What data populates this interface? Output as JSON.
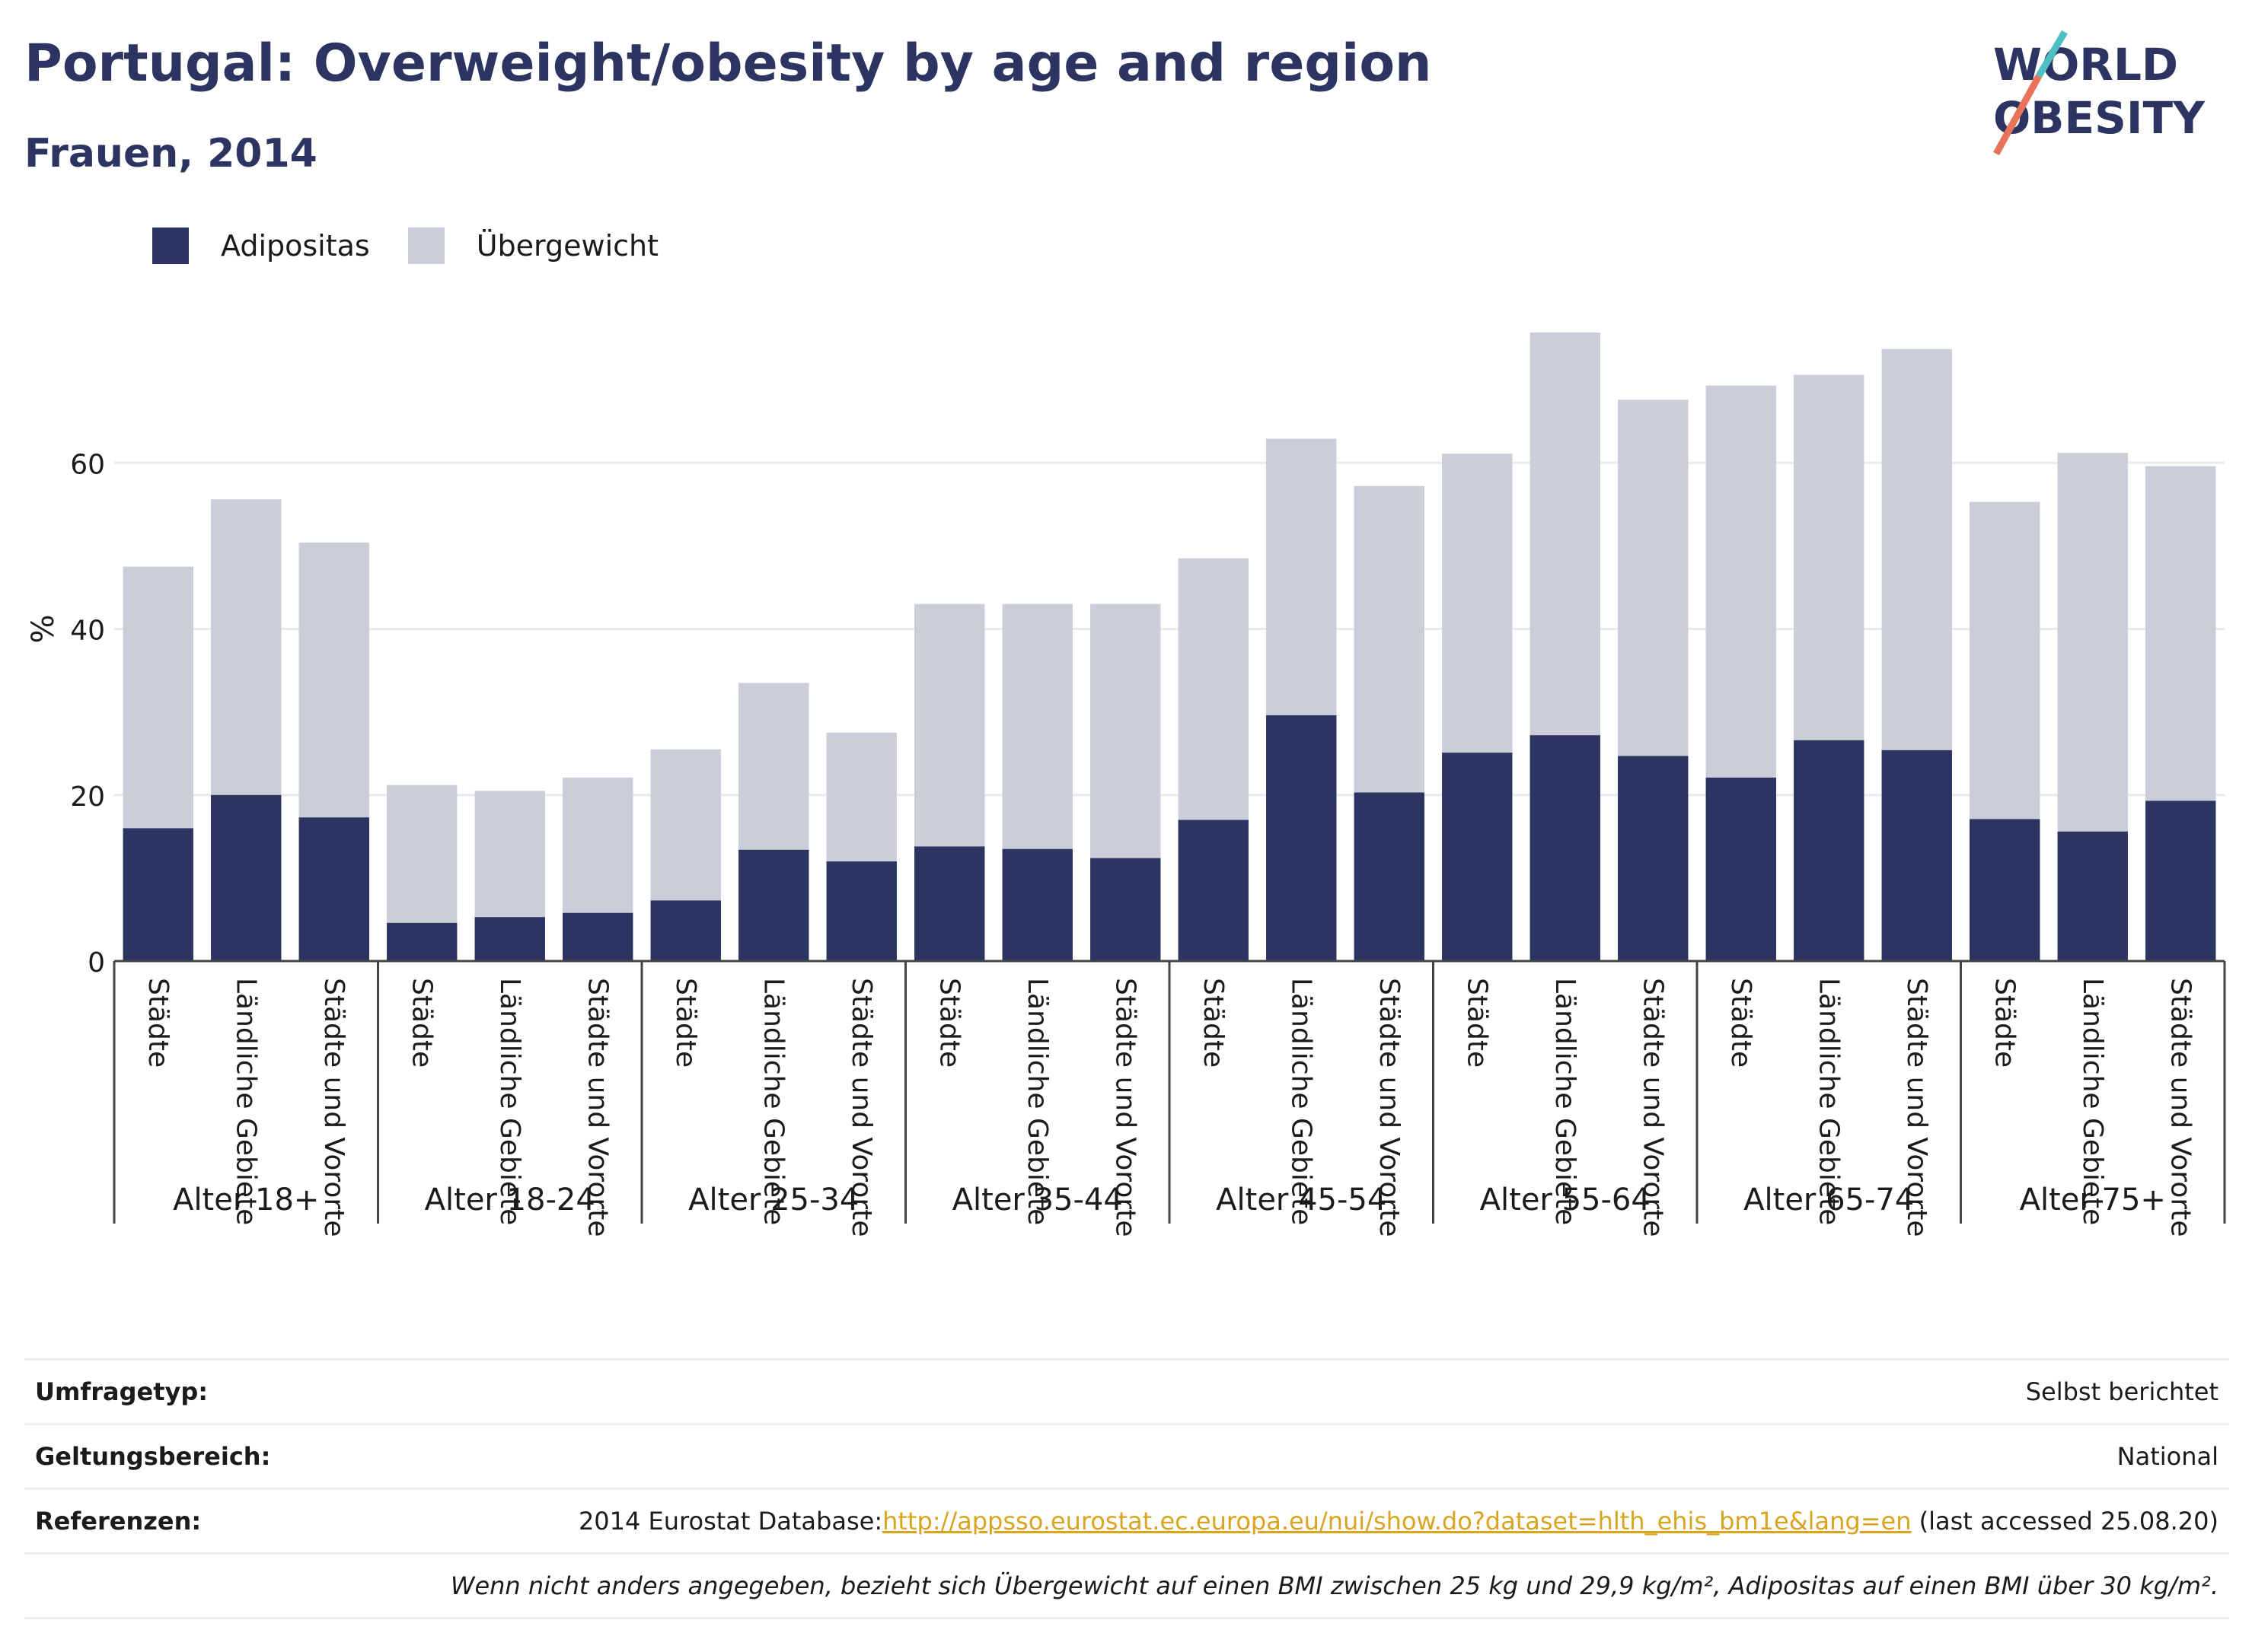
{
  "header": {
    "title": "Portugal: Overweight/obesity by age and region",
    "subtitle": "Frauen, 2014"
  },
  "logo": {
    "line1": "WORLD",
    "line2": "OBESITY"
  },
  "legend": {
    "obesity_label": "Adipositas",
    "overweight_label": "Übergewicht"
  },
  "colors": {
    "obesity": "#2c3562",
    "overweight": "#cbcdd9",
    "grid": "#e8eaf0",
    "link": "#d9a520"
  },
  "chart_data": {
    "type": "bar",
    "stacked": true,
    "ylabel": "%",
    "ylim": [
      0,
      80
    ],
    "yticks": [
      0,
      20,
      40,
      60
    ],
    "grid": true,
    "legend_position": "top-left",
    "groups": [
      "Alter 18+",
      "Alter 18-24",
      "Alter 25-34",
      "Alter 35-44",
      "Alter 45-54",
      "Alter 55-64",
      "Alter 65-74",
      "Alter 75+"
    ],
    "subcategories": [
      "Städte",
      "Ländliche Gebiete",
      "Städte und Vororte"
    ],
    "series": [
      {
        "name": "Adipositas",
        "values": [
          16.0,
          20.0,
          17.3,
          4.6,
          5.3,
          5.8,
          7.3,
          13.4,
          12.0,
          13.8,
          13.5,
          12.4,
          17.0,
          29.6,
          20.3,
          25.1,
          27.2,
          24.7,
          22.1,
          26.6,
          25.4,
          17.1,
          15.6,
          19.3
        ]
      },
      {
        "name": "Übergewicht",
        "values": [
          31.5,
          35.6,
          33.1,
          16.6,
          15.2,
          16.3,
          18.2,
          20.1,
          15.5,
          29.2,
          29.5,
          30.6,
          31.5,
          33.3,
          36.9,
          36.0,
          48.5,
          42.9,
          47.2,
          44.0,
          48.3,
          38.2,
          45.6,
          40.3
        ]
      }
    ]
  },
  "info": {
    "survey_label": "Umfragetyp:",
    "survey_value": "Selbst berichtet",
    "scope_label": "Geltungsbereich:",
    "scope_value": "National",
    "refs_label": "Referenzen:",
    "refs_prefix": "2014 Eurostat Database:",
    "refs_link": "http://appsso.eurostat.ec.europa.eu/nui/show.do?dataset=hlth_ehis_bm1e&lang=en",
    "refs_suffix": " (last accessed 25.08.20)",
    "note": "Wenn nicht anders angegeben, bezieht sich Übergewicht auf einen BMI zwischen 25 kg und 29,9 kg/m², Adipositas auf einen BMI über 30 kg/m²."
  }
}
